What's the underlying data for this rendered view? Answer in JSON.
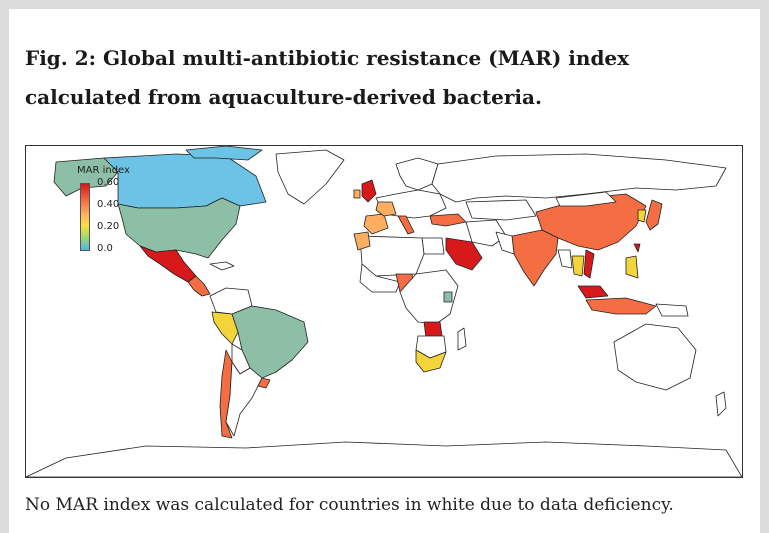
{
  "figure": {
    "title": "Fig. 2: Global multi-antibiotic resistance (MAR) index calculated from aquaculture-derived bacteria.",
    "caption": "No MAR index was calculated for countries in white due to data deficiency."
  },
  "legend": {
    "title": "MAR index",
    "ticks": [
      "0.60",
      "0.40",
      "0.20",
      "0.0"
    ],
    "range": [
      0.0,
      0.6
    ],
    "colors": [
      "#4db6e8",
      "#a6d96a",
      "#fee03f",
      "#fdae61",
      "#f46d43",
      "#d7191c"
    ]
  },
  "map": {
    "no_data_color": "#ffffff",
    "border_color": "#222222"
  }
}
